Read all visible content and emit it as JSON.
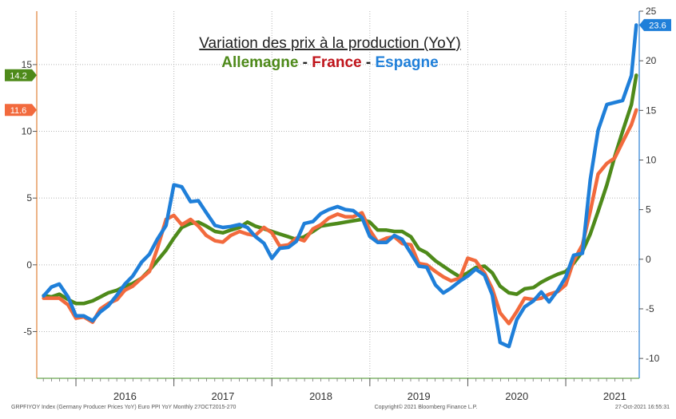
{
  "chart_data": {
    "type": "line",
    "title": "Variation des prix à la production (YoY)",
    "subtitle_parts": [
      {
        "text": "Allemagne",
        "color": "#4e8a1a"
      },
      {
        "text": " - ",
        "color": "#222222"
      },
      {
        "text": "France",
        "color": "#c0141b"
      },
      {
        "text": " - ",
        "color": "#222222"
      },
      {
        "text": "Espagne",
        "color": "#1f7fd9"
      }
    ],
    "left_axis": {
      "min": -8.5,
      "max": 19,
      "ticks": [
        -5,
        0,
        5,
        10,
        15
      ],
      "labels": [
        "-5",
        "0",
        "5",
        "10",
        "15"
      ]
    },
    "right_axis": {
      "min": -12,
      "max": 25,
      "ticks": [
        -10,
        -5,
        0,
        5,
        10,
        15,
        20,
        25
      ],
      "labels": [
        "-10",
        "-5",
        "0",
        "5",
        "10",
        "15",
        "20",
        "25"
      ]
    },
    "x_axis": {
      "min": 2015.6,
      "max": 2021.75,
      "year_labels": [
        "2016",
        "2017",
        "2018",
        "2019",
        "2020",
        "2021"
      ],
      "year_positions": [
        2016.5,
        2017.5,
        2018.5,
        2019.5,
        2020.5,
        2021.5
      ]
    },
    "grid": true,
    "series": [
      {
        "name": "Allemagne",
        "axis": "left",
        "color": "#4e8a1a",
        "last_value_label": "14.2",
        "points": [
          [
            2015.67,
            -2.3
          ],
          [
            2015.75,
            -2.4
          ],
          [
            2015.83,
            -2.2
          ],
          [
            2015.92,
            -2.6
          ],
          [
            2016.0,
            -2.9
          ],
          [
            2016.08,
            -2.9
          ],
          [
            2016.17,
            -2.7
          ],
          [
            2016.25,
            -2.4
          ],
          [
            2016.33,
            -2.1
          ],
          [
            2016.42,
            -1.9
          ],
          [
            2016.5,
            -1.6
          ],
          [
            2016.58,
            -1.4
          ],
          [
            2016.67,
            -1.0
          ],
          [
            2016.75,
            -0.4
          ],
          [
            2016.83,
            0.3
          ],
          [
            2016.92,
            1.1
          ],
          [
            2017.0,
            2.0
          ],
          [
            2017.08,
            2.8
          ],
          [
            2017.17,
            3.1
          ],
          [
            2017.25,
            3.2
          ],
          [
            2017.33,
            2.9
          ],
          [
            2017.42,
            2.5
          ],
          [
            2017.5,
            2.4
          ],
          [
            2017.58,
            2.6
          ],
          [
            2017.67,
            2.8
          ],
          [
            2017.75,
            3.2
          ],
          [
            2017.83,
            2.9
          ],
          [
            2017.92,
            2.7
          ],
          [
            2018.0,
            2.5
          ],
          [
            2018.08,
            2.3
          ],
          [
            2018.17,
            2.1
          ],
          [
            2018.25,
            1.9
          ],
          [
            2018.33,
            2.1
          ],
          [
            2018.42,
            2.5
          ],
          [
            2018.5,
            2.9
          ],
          [
            2018.58,
            3.0
          ],
          [
            2018.67,
            3.1
          ],
          [
            2018.75,
            3.2
          ],
          [
            2018.83,
            3.3
          ],
          [
            2018.92,
            3.4
          ],
          [
            2019.0,
            3.2
          ],
          [
            2019.08,
            2.6
          ],
          [
            2019.17,
            2.6
          ],
          [
            2019.25,
            2.5
          ],
          [
            2019.33,
            2.5
          ],
          [
            2019.42,
            2.1
          ],
          [
            2019.5,
            1.2
          ],
          [
            2019.58,
            0.9
          ],
          [
            2019.67,
            0.3
          ],
          [
            2019.75,
            -0.1
          ],
          [
            2019.83,
            -0.5
          ],
          [
            2019.92,
            -0.9
          ],
          [
            2020.0,
            -0.6
          ],
          [
            2020.08,
            -0.2
          ],
          [
            2020.17,
            -0.1
          ],
          [
            2020.25,
            -0.6
          ],
          [
            2020.33,
            -1.6
          ],
          [
            2020.42,
            -2.1
          ],
          [
            2020.5,
            -2.2
          ],
          [
            2020.58,
            -1.8
          ],
          [
            2020.67,
            -1.7
          ],
          [
            2020.75,
            -1.3
          ],
          [
            2020.83,
            -1.0
          ],
          [
            2020.92,
            -0.7
          ],
          [
            2021.0,
            -0.5
          ],
          [
            2021.08,
            0.1
          ],
          [
            2021.17,
            1.0
          ],
          [
            2021.25,
            2.3
          ],
          [
            2021.33,
            4.0
          ],
          [
            2021.42,
            6.0
          ],
          [
            2021.5,
            8.1
          ],
          [
            2021.58,
            10.0
          ],
          [
            2021.67,
            12.0
          ],
          [
            2021.72,
            14.2
          ]
        ]
      },
      {
        "name": "France",
        "axis": "left",
        "color": "#f26a3d",
        "last_value_label": "11.6",
        "points": [
          [
            2015.67,
            -2.5
          ],
          [
            2015.75,
            -2.5
          ],
          [
            2015.83,
            -2.5
          ],
          [
            2015.92,
            -3.0
          ],
          [
            2016.0,
            -4.0
          ],
          [
            2016.08,
            -3.9
          ],
          [
            2016.17,
            -4.3
          ],
          [
            2016.25,
            -3.3
          ],
          [
            2016.33,
            -2.9
          ],
          [
            2016.42,
            -2.6
          ],
          [
            2016.5,
            -1.9
          ],
          [
            2016.58,
            -1.6
          ],
          [
            2016.67,
            -1.0
          ],
          [
            2016.75,
            -0.5
          ],
          [
            2016.83,
            1.2
          ],
          [
            2016.92,
            3.4
          ],
          [
            2017.0,
            3.7
          ],
          [
            2017.08,
            3.0
          ],
          [
            2017.17,
            3.4
          ],
          [
            2017.25,
            2.9
          ],
          [
            2017.33,
            2.2
          ],
          [
            2017.42,
            1.8
          ],
          [
            2017.5,
            1.7
          ],
          [
            2017.58,
            2.2
          ],
          [
            2017.67,
            2.5
          ],
          [
            2017.75,
            2.3
          ],
          [
            2017.83,
            2.2
          ],
          [
            2017.92,
            2.8
          ],
          [
            2018.0,
            2.4
          ],
          [
            2018.08,
            1.4
          ],
          [
            2018.17,
            1.5
          ],
          [
            2018.25,
            2.0
          ],
          [
            2018.33,
            1.8
          ],
          [
            2018.42,
            2.7
          ],
          [
            2018.5,
            3.0
          ],
          [
            2018.58,
            3.5
          ],
          [
            2018.67,
            3.8
          ],
          [
            2018.75,
            3.6
          ],
          [
            2018.83,
            3.6
          ],
          [
            2018.92,
            3.9
          ],
          [
            2019.0,
            2.6
          ],
          [
            2019.08,
            1.7
          ],
          [
            2019.17,
            2.0
          ],
          [
            2019.25,
            2.1
          ],
          [
            2019.33,
            1.6
          ],
          [
            2019.42,
            1.5
          ],
          [
            2019.5,
            0.1
          ],
          [
            2019.58,
            0.0
          ],
          [
            2019.67,
            -0.5
          ],
          [
            2019.75,
            -0.9
          ],
          [
            2019.83,
            -1.2
          ],
          [
            2019.92,
            -1.0
          ],
          [
            2020.0,
            0.5
          ],
          [
            2020.08,
            0.3
          ],
          [
            2020.17,
            -0.6
          ],
          [
            2020.25,
            -1.8
          ],
          [
            2020.33,
            -3.6
          ],
          [
            2020.42,
            -4.4
          ],
          [
            2020.5,
            -3.5
          ],
          [
            2020.58,
            -2.5
          ],
          [
            2020.67,
            -2.6
          ],
          [
            2020.75,
            -2.5
          ],
          [
            2020.83,
            -2.2
          ],
          [
            2020.92,
            -2.0
          ],
          [
            2021.0,
            -1.5
          ],
          [
            2021.08,
            0.3
          ],
          [
            2021.17,
            1.5
          ],
          [
            2021.25,
            4.0
          ],
          [
            2021.33,
            6.8
          ],
          [
            2021.42,
            7.6
          ],
          [
            2021.5,
            8.0
          ],
          [
            2021.58,
            9.2
          ],
          [
            2021.67,
            10.5
          ],
          [
            2021.72,
            11.6
          ]
        ]
      },
      {
        "name": "Espagne",
        "axis": "right",
        "color": "#1f7fd9",
        "last_value_label": "23.6",
        "points": [
          [
            2015.67,
            -3.7
          ],
          [
            2015.75,
            -2.8
          ],
          [
            2015.83,
            -2.5
          ],
          [
            2015.92,
            -3.8
          ],
          [
            2016.0,
            -5.7
          ],
          [
            2016.08,
            -5.7
          ],
          [
            2016.17,
            -6.2
          ],
          [
            2016.25,
            -5.3
          ],
          [
            2016.33,
            -4.7
          ],
          [
            2016.42,
            -3.6
          ],
          [
            2016.5,
            -2.5
          ],
          [
            2016.58,
            -1.7
          ],
          [
            2016.67,
            -0.3
          ],
          [
            2016.75,
            0.5
          ],
          [
            2016.83,
            2.0
          ],
          [
            2016.92,
            3.4
          ],
          [
            2017.0,
            7.5
          ],
          [
            2017.08,
            7.3
          ],
          [
            2017.17,
            5.8
          ],
          [
            2017.25,
            5.9
          ],
          [
            2017.33,
            4.7
          ],
          [
            2017.42,
            3.4
          ],
          [
            2017.5,
            3.2
          ],
          [
            2017.58,
            3.3
          ],
          [
            2017.67,
            3.5
          ],
          [
            2017.75,
            3.2
          ],
          [
            2017.83,
            2.3
          ],
          [
            2017.92,
            1.6
          ],
          [
            2018.0,
            0.1
          ],
          [
            2018.08,
            1.1
          ],
          [
            2018.17,
            1.2
          ],
          [
            2018.25,
            1.8
          ],
          [
            2018.33,
            3.6
          ],
          [
            2018.42,
            3.8
          ],
          [
            2018.5,
            4.6
          ],
          [
            2018.58,
            5.0
          ],
          [
            2018.67,
            5.3
          ],
          [
            2018.75,
            5.0
          ],
          [
            2018.83,
            4.9
          ],
          [
            2018.92,
            4.2
          ],
          [
            2019.0,
            2.3
          ],
          [
            2019.08,
            1.7
          ],
          [
            2019.17,
            1.7
          ],
          [
            2019.25,
            2.4
          ],
          [
            2019.33,
            2.0
          ],
          [
            2019.42,
            0.6
          ],
          [
            2019.5,
            -0.7
          ],
          [
            2019.58,
            -0.8
          ],
          [
            2019.67,
            -2.6
          ],
          [
            2019.75,
            -3.4
          ],
          [
            2019.83,
            -2.9
          ],
          [
            2019.92,
            -2.2
          ],
          [
            2020.0,
            -1.7
          ],
          [
            2020.08,
            -1.0
          ],
          [
            2020.17,
            -1.6
          ],
          [
            2020.25,
            -3.6
          ],
          [
            2020.33,
            -8.4
          ],
          [
            2020.42,
            -8.8
          ],
          [
            2020.5,
            -6.1
          ],
          [
            2020.58,
            -4.8
          ],
          [
            2020.67,
            -4.2
          ],
          [
            2020.75,
            -3.3
          ],
          [
            2020.83,
            -4.3
          ],
          [
            2020.92,
            -3.1
          ],
          [
            2021.0,
            -1.8
          ],
          [
            2021.08,
            0.4
          ],
          [
            2021.17,
            0.6
          ],
          [
            2021.25,
            8.0
          ],
          [
            2021.33,
            13.0
          ],
          [
            2021.42,
            15.6
          ],
          [
            2021.5,
            15.8
          ],
          [
            2021.58,
            16.0
          ],
          [
            2021.67,
            18.5
          ],
          [
            2021.72,
            23.6
          ]
        ]
      }
    ],
    "footer_left": "GRPFIYOY Index (Germany Producer Prices YoY) Euro PPI YoY  Monthly 27OCT2015-270",
    "footer_center": "Copyright© 2021 Bloomberg Finance L.P.",
    "footer_right": "27-Oct-2021 16:55:31"
  }
}
